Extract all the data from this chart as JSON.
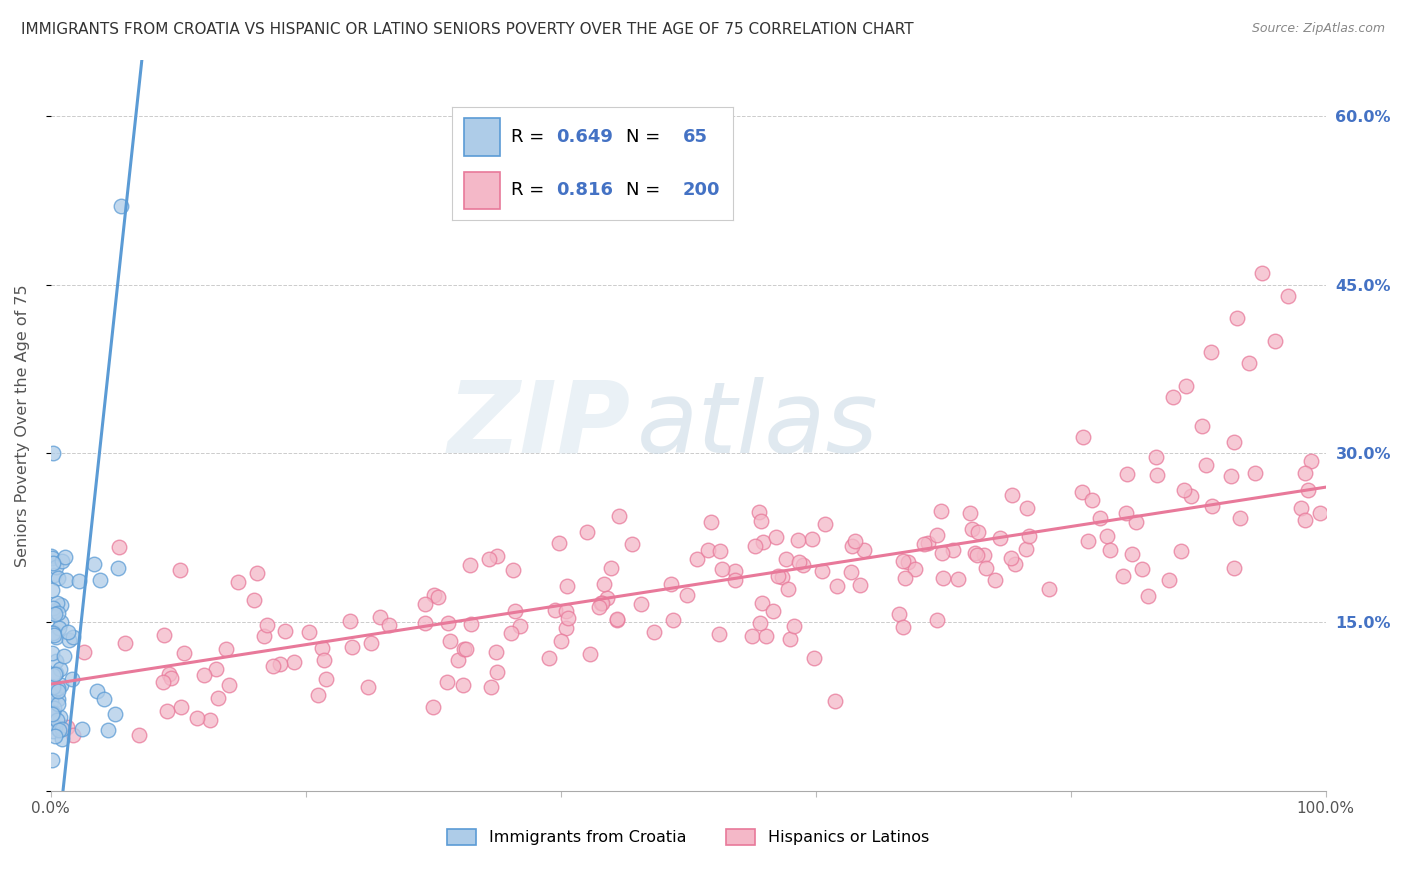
{
  "title": "IMMIGRANTS FROM CROATIA VS HISPANIC OR LATINO SENIORS POVERTY OVER THE AGE OF 75 CORRELATION CHART",
  "source": "Source: ZipAtlas.com",
  "ylabel": "Seniors Poverty Over the Age of 75",
  "xlim": [
    0,
    1.0
  ],
  "ylim": [
    0,
    0.65
  ],
  "xtick_positions": [
    0.0,
    0.2,
    0.4,
    0.6,
    0.8,
    1.0
  ],
  "xticklabels": [
    "0.0%",
    "",
    "",
    "",
    "",
    "100.0%"
  ],
  "ytick_positions": [
    0.0,
    0.15,
    0.3,
    0.45,
    0.6
  ],
  "right_yticklabels": [
    "",
    "15.0%",
    "30.0%",
    "45.0%",
    "60.0%"
  ],
  "croatia_line_color": "#5b9bd5",
  "croatia_fill_color": "#aecce8",
  "croatia_edge_color": "#5b9bd5",
  "hispanic_line_color": "#e8799a",
  "hispanic_fill_color": "#f4b8c8",
  "hispanic_edge_color": "#e8799a",
  "croatia_R": 0.649,
  "croatia_N": 65,
  "hispanic_R": 0.816,
  "hispanic_N": 200,
  "watermark_zip": "ZIP",
  "watermark_atlas": "atlas",
  "watermark_zip_color": "#d8e8f0",
  "watermark_atlas_color": "#c8d8e8",
  "legend_labels": [
    "Immigrants from Croatia",
    "Hispanics or Latinos"
  ],
  "background_color": "#ffffff",
  "grid_color": "#cccccc",
  "title_color": "#333333",
  "axis_label_color": "#555555",
  "right_tick_color": "#4472c4",
  "legend_number_color": "#4472c4",
  "legend_text_color": "#222222"
}
